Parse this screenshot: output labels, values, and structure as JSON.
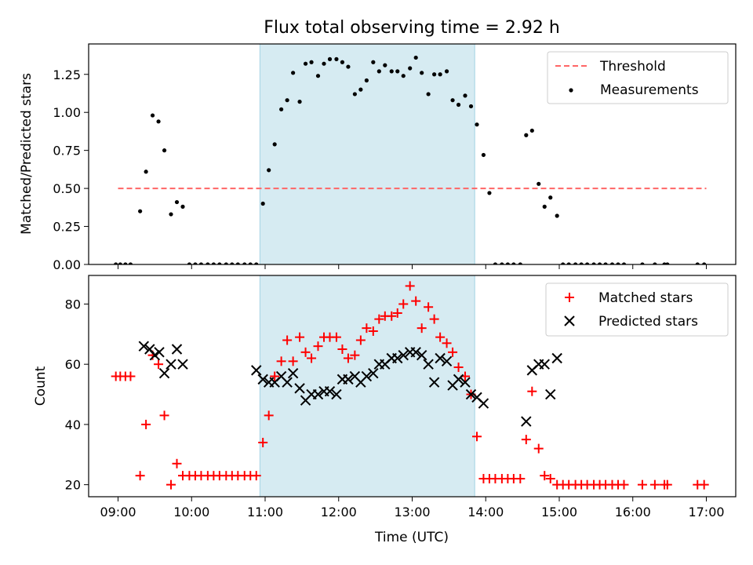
{
  "colors": {
    "band": "#add8e6",
    "threshold": "#ff6666",
    "measurements": "#000000",
    "matched": "#ff0000",
    "predicted": "#000000"
  },
  "chart_data": [
    {
      "type": "scatter",
      "title": "Flux total observing time = 2.92 h",
      "xlabel": "",
      "ylabel": "Matched/Predicted stars",
      "xlim": [
        8.6,
        17.4
      ],
      "ylim": [
        0,
        1.45
      ],
      "yticks": [
        0.0,
        0.25,
        0.5,
        0.75,
        1.0,
        1.25
      ],
      "ytick_labels": [
        "0.00",
        "0.25",
        "0.50",
        "0.75",
        "1.00",
        "1.25"
      ],
      "shaded_interval": [
        10.93,
        13.85
      ],
      "legend": [
        "Threshold",
        "Measurements"
      ],
      "legend_position": "upper right",
      "threshold": {
        "name": "Threshold",
        "x": [
          9.0,
          17.0
        ],
        "y": [
          0.5,
          0.5
        ]
      },
      "series": [
        {
          "name": "Measurements",
          "x": [
            8.97,
            9.03,
            9.1,
            9.17,
            9.3,
            9.38,
            9.47,
            9.55,
            9.63,
            9.72,
            9.8,
            9.88,
            9.97,
            10.05,
            10.13,
            10.22,
            10.3,
            10.38,
            10.47,
            10.55,
            10.63,
            10.72,
            10.8,
            10.88,
            10.97,
            11.05,
            11.13,
            11.22,
            11.3,
            11.38,
            11.47,
            11.55,
            11.63,
            11.72,
            11.8,
            11.88,
            11.97,
            12.05,
            12.13,
            12.22,
            12.3,
            12.38,
            12.47,
            12.55,
            12.63,
            12.72,
            12.8,
            12.88,
            12.97,
            13.05,
            13.13,
            13.22,
            13.3,
            13.38,
            13.47,
            13.55,
            13.63,
            13.72,
            13.8,
            13.88,
            13.97,
            14.05,
            14.13,
            14.22,
            14.3,
            14.38,
            14.47,
            14.55,
            14.63,
            14.72,
            14.8,
            14.88,
            14.97,
            15.05,
            15.13,
            15.22,
            15.3,
            15.38,
            15.47,
            15.55,
            15.63,
            15.72,
            15.8,
            15.88,
            16.13,
            16.3,
            16.43,
            16.47,
            16.88,
            16.97
          ],
          "y": [
            0,
            0,
            0,
            0,
            0.35,
            0.61,
            0.98,
            0.94,
            0.75,
            0.33,
            0.41,
            0.38,
            0,
            0,
            0,
            0,
            0,
            0,
            0,
            0,
            0,
            0,
            0,
            0,
            0.4,
            0.62,
            0.79,
            1.02,
            1.08,
            1.26,
            1.07,
            1.32,
            1.33,
            1.24,
            1.32,
            1.35,
            1.35,
            1.33,
            1.3,
            1.12,
            1.15,
            1.21,
            1.33,
            1.27,
            1.31,
            1.27,
            1.27,
            1.24,
            1.29,
            1.36,
            1.26,
            1.12,
            1.25,
            1.25,
            1.27,
            1.08,
            1.05,
            1.11,
            1.04,
            0.92,
            0.72,
            0.47,
            0,
            0,
            0,
            0,
            0,
            0.85,
            0.88,
            0.53,
            0.38,
            0.44,
            0.32,
            0,
            0,
            0,
            0,
            0,
            0,
            0,
            0,
            0,
            0,
            0,
            0,
            0,
            0,
            0,
            0,
            0
          ]
        }
      ]
    },
    {
      "type": "scatter",
      "title": "",
      "xlabel": "Time (UTC)",
      "ylabel": "Count",
      "xlim": [
        8.6,
        17.4
      ],
      "ylim": [
        16,
        89.5
      ],
      "yticks": [
        20,
        40,
        60,
        80
      ],
      "ytick_labels": [
        "20",
        "40",
        "60",
        "80"
      ],
      "xticks": [
        9,
        10,
        11,
        12,
        13,
        14,
        15,
        16,
        17
      ],
      "xtick_labels": [
        "09:00",
        "10:00",
        "11:00",
        "12:00",
        "13:00",
        "14:00",
        "15:00",
        "16:00",
        "17:00"
      ],
      "shaded_interval": [
        10.93,
        13.85
      ],
      "legend": [
        "Matched stars",
        "Predicted stars"
      ],
      "legend_position": "upper right",
      "series": [
        {
          "name": "Matched stars",
          "marker": "+",
          "x": [
            8.97,
            9.03,
            9.1,
            9.17,
            9.3,
            9.38,
            9.47,
            9.55,
            9.63,
            9.72,
            9.8,
            9.88,
            9.97,
            10.05,
            10.13,
            10.22,
            10.3,
            10.38,
            10.47,
            10.55,
            10.63,
            10.72,
            10.8,
            10.88,
            10.97,
            11.05,
            11.13,
            11.22,
            11.3,
            11.38,
            11.47,
            11.55,
            11.63,
            11.72,
            11.8,
            11.88,
            11.97,
            12.05,
            12.13,
            12.22,
            12.3,
            12.38,
            12.47,
            12.55,
            12.63,
            12.72,
            12.8,
            12.88,
            12.97,
            13.05,
            13.13,
            13.22,
            13.3,
            13.38,
            13.47,
            13.55,
            13.63,
            13.72,
            13.8,
            13.88,
            13.97,
            14.05,
            14.13,
            14.22,
            14.3,
            14.38,
            14.47,
            14.55,
            14.63,
            14.72,
            14.8,
            14.88,
            14.97,
            15.05,
            15.13,
            15.22,
            15.3,
            15.38,
            15.47,
            15.55,
            15.63,
            15.72,
            15.8,
            15.88,
            16.13,
            16.3,
            16.43,
            16.47,
            16.88,
            16.97
          ],
          "y": [
            56,
            56,
            56,
            56,
            23,
            40,
            63,
            60,
            43,
            20,
            27,
            23,
            23,
            23,
            23,
            23,
            23,
            23,
            23,
            23,
            23,
            23,
            23,
            23,
            34,
            43,
            56,
            61,
            68,
            61,
            69,
            64,
            62,
            66,
            69,
            69,
            69,
            65,
            62,
            63,
            68,
            72,
            71,
            75,
            76,
            76,
            77,
            80,
            86,
            81,
            72,
            79,
            75,
            69,
            67,
            64,
            59,
            56,
            50,
            36,
            22,
            22,
            22,
            22,
            22,
            22,
            22,
            35,
            51,
            32,
            23,
            22,
            20,
            20,
            20,
            20,
            20,
            20,
            20,
            20,
            20,
            20,
            20,
            20,
            20,
            20,
            20,
            20,
            20,
            20
          ]
        },
        {
          "name": "Predicted stars",
          "marker": "x",
          "x": [
            9.35,
            9.43,
            9.5,
            9.56,
            9.63,
            9.72,
            9.8,
            9.88,
            10.88,
            10.97,
            11.05,
            11.13,
            11.22,
            11.3,
            11.38,
            11.47,
            11.55,
            11.63,
            11.72,
            11.8,
            11.88,
            11.97,
            12.05,
            12.13,
            12.22,
            12.3,
            12.38,
            12.47,
            12.55,
            12.63,
            12.72,
            12.8,
            12.88,
            12.97,
            13.05,
            13.13,
            13.22,
            13.3,
            13.38,
            13.47,
            13.55,
            13.63,
            13.72,
            13.8,
            13.88,
            13.97,
            14.55,
            14.63,
            14.72,
            14.8,
            14.88,
            14.97
          ],
          "y": [
            66,
            65,
            63,
            64,
            57,
            60,
            65,
            60,
            58,
            55,
            54,
            54,
            56,
            54,
            57,
            52,
            48,
            50,
            50,
            51,
            51,
            50,
            55,
            55,
            56,
            54,
            56,
            57,
            60,
            60,
            62,
            62,
            63,
            64,
            64,
            63,
            60,
            54,
            62,
            61,
            53,
            55,
            54,
            50,
            49,
            47,
            41,
            58,
            60,
            60,
            50,
            62
          ]
        }
      ]
    }
  ]
}
